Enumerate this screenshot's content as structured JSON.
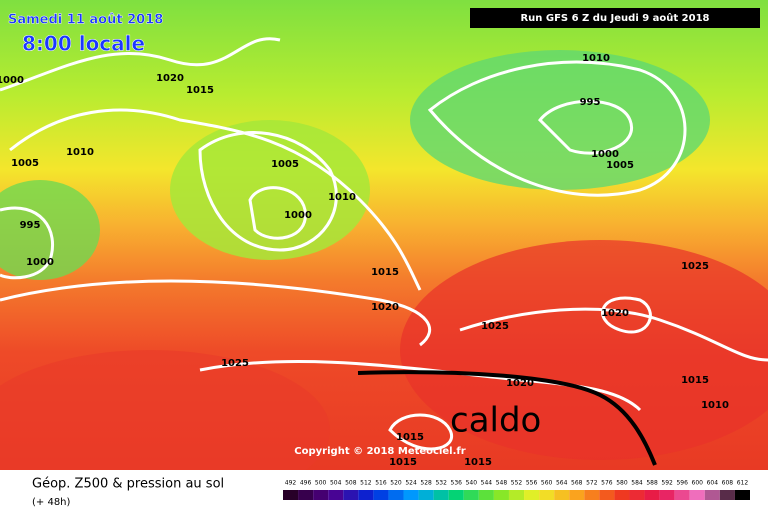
{
  "header": {
    "date": "Samedi 11 août 2018",
    "time": "8:00 locale",
    "run": "Run GFS 6 Z du Jeudi 9 août 2018"
  },
  "annotation": "caldo",
  "copyright": "Copyright © 2018 Meteociel.fr",
  "isobar_labels": [
    "1000",
    "1020",
    "1015",
    "1010",
    "1005",
    "1005",
    "1010",
    "1000",
    "995",
    "1000",
    "1010",
    "995",
    "1000",
    "1005",
    "1025",
    "1015",
    "1020",
    "1025",
    "1020",
    "1025",
    "1020",
    "1015",
    "1010",
    "1015",
    "1015",
    "1015"
  ],
  "footer": {
    "title": "Géop. Z500 & pression au sol",
    "lead": "(+ 48h)"
  },
  "scale": {
    "labels": [
      492,
      496,
      500,
      504,
      508,
      512,
      516,
      520,
      524,
      528,
      532,
      536,
      540,
      544,
      548,
      552,
      556,
      560,
      564,
      568,
      572,
      576,
      580,
      584,
      588,
      592,
      596,
      600,
      604,
      608,
      612
    ]
  }
}
